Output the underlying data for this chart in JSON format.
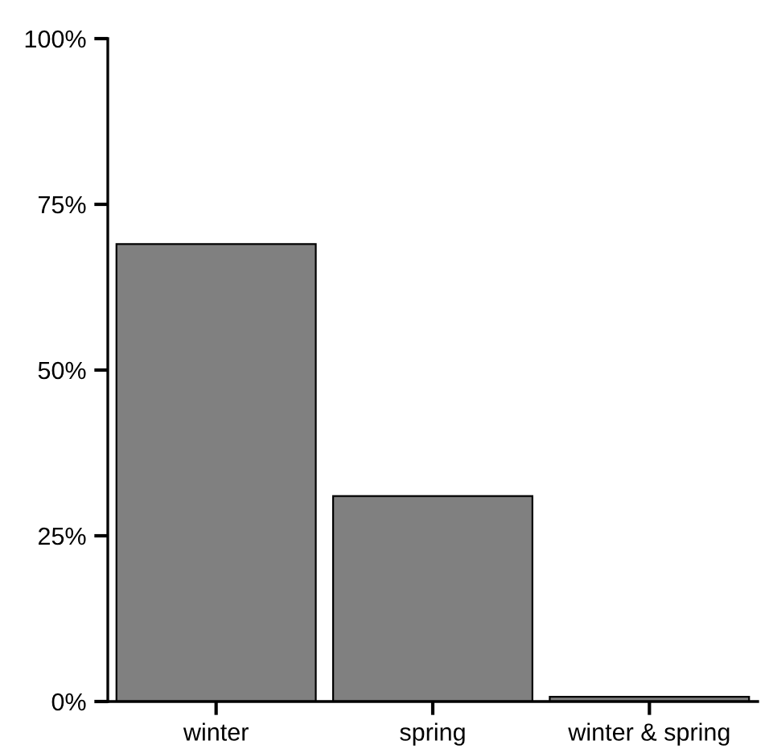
{
  "chart_data": {
    "type": "bar",
    "categories": [
      "winter",
      "spring",
      "winter & spring"
    ],
    "values": [
      69,
      31,
      0.7
    ],
    "color": "#808080",
    "ylim": [
      0,
      100
    ],
    "yticks": [
      {
        "value": 0,
        "label": "0%"
      },
      {
        "value": 25,
        "label": "25%"
      },
      {
        "value": 50,
        "label": "50%"
      },
      {
        "value": 75,
        "label": "75%"
      },
      {
        "value": 100,
        "label": "100%"
      }
    ],
    "grid": false,
    "legend": false
  }
}
